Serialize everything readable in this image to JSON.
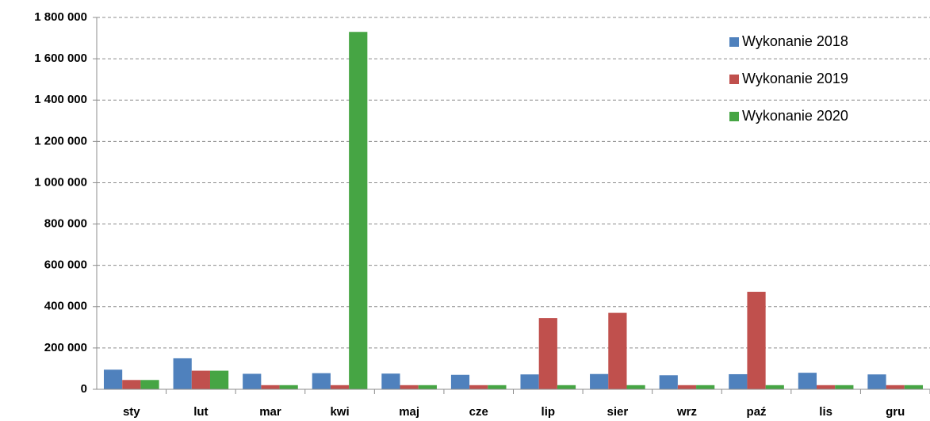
{
  "chart_data": {
    "type": "bar",
    "categories": [
      "sty",
      "lut",
      "mar",
      "kwi",
      "maj",
      "cze",
      "lip",
      "sier",
      "wrz",
      "paź",
      "lis",
      "gru"
    ],
    "series": [
      {
        "name": "Wykonanie 2018",
        "color": "#4f81bd",
        "values": [
          95000,
          150000,
          75000,
          78000,
          76000,
          70000,
          72000,
          74000,
          68000,
          73000,
          80000,
          72000
        ]
      },
      {
        "name": "Wykonanie 2019",
        "color": "#c0504d",
        "values": [
          45000,
          90000,
          20000,
          20000,
          20000,
          20000,
          345000,
          370000,
          20000,
          472000,
          20000,
          20000
        ]
      },
      {
        "name": "Wykonanie 2020",
        "color": "#46a544",
        "values": [
          45000,
          90000,
          20000,
          1730000,
          20000,
          20000,
          20000,
          20000,
          20000,
          20000,
          20000,
          20000
        ]
      }
    ],
    "ylim": [
      0,
      1800000
    ],
    "yticks": [
      0,
      {
        "value": 200000,
        "label": "200 000"
      },
      {
        "value": 400000,
        "label": "400 000"
      },
      {
        "value": 600000,
        "label": "600 000"
      },
      {
        "value": 800000,
        "label": "800 000"
      },
      {
        "value": 1000000,
        "label": "1 000 000"
      },
      {
        "value": 1200000,
        "label": "1 200 000"
      },
      {
        "value": 1400000,
        "label": "1 400 000"
      },
      {
        "value": 1600000,
        "label": "1 600 000"
      },
      {
        "value": 1800000,
        "label": "1 800 000"
      }
    ],
    "grid": true,
    "legend": "top-right"
  }
}
